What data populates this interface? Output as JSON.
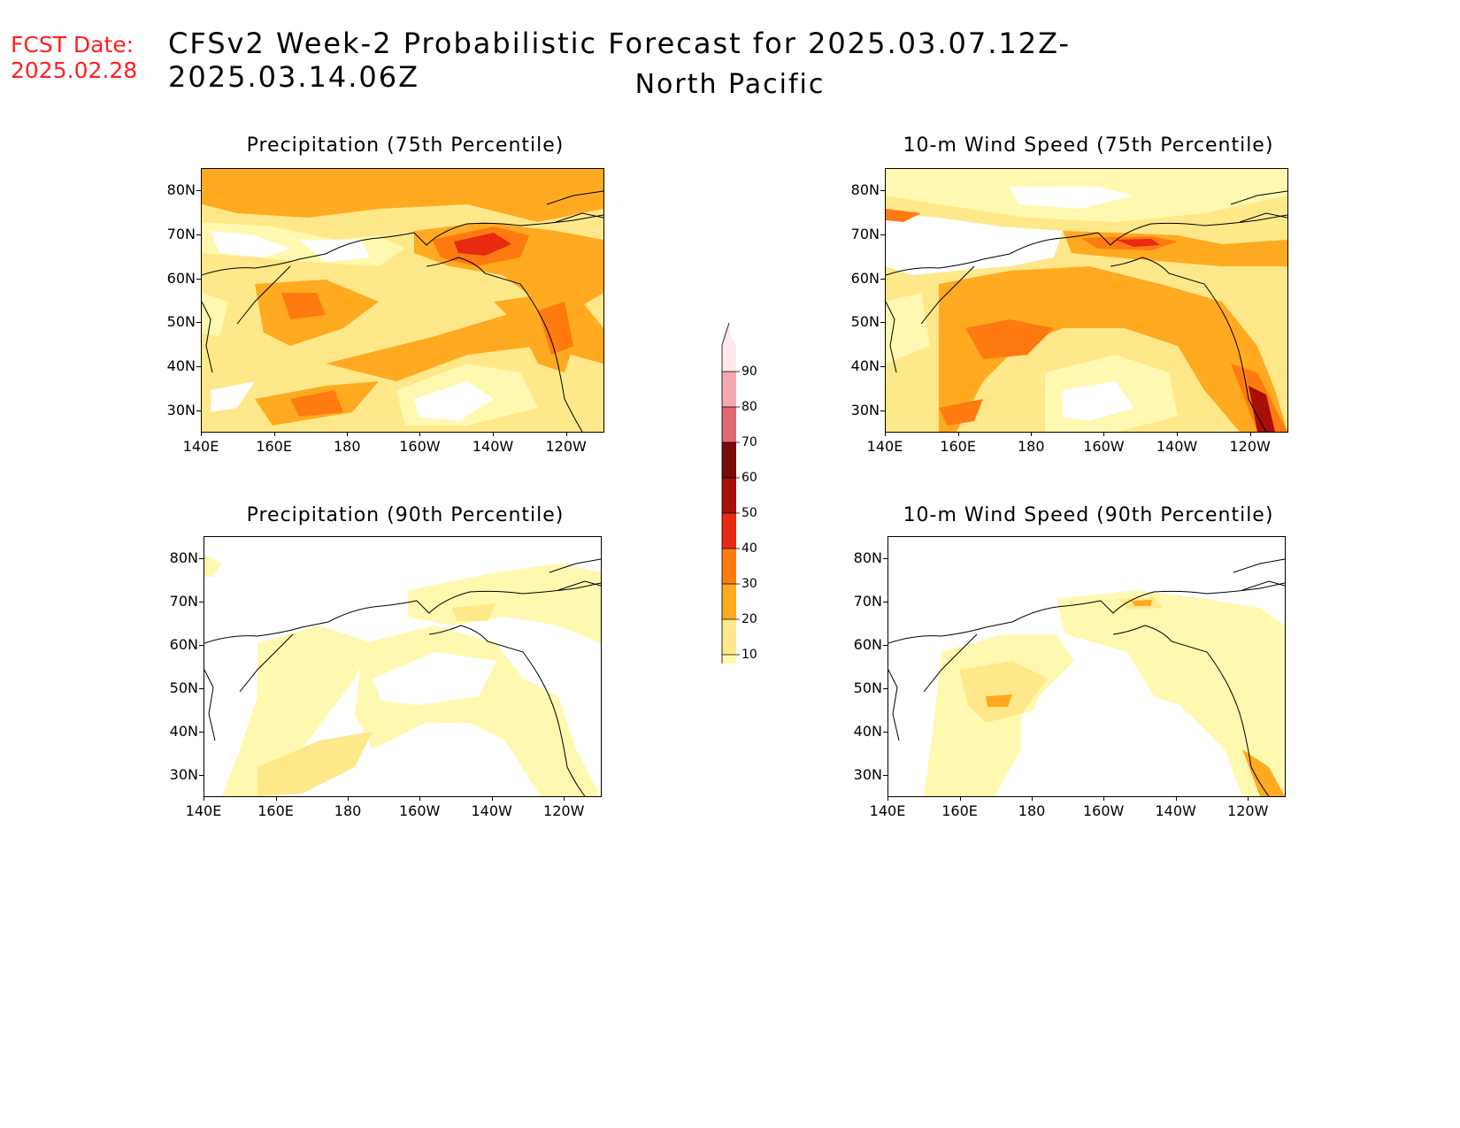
{
  "header": {
    "fcst_label": "FCST Date:",
    "fcst_date": "2025.02.28",
    "title": "CFSv2 Week-2 Probabilistic Forecast for 2025.03.07.12Z-2025.03.14.06Z",
    "region": "North Pacific"
  },
  "panels": [
    {
      "id": "precip75",
      "title": "Precipitation (75th Percentile)"
    },
    {
      "id": "wind75",
      "title": "10-m Wind Speed (75th Percentile)"
    },
    {
      "id": "precip90",
      "title": "Precipitation (90th Percentile)"
    },
    {
      "id": "wind90",
      "title": "10-m Wind Speed (90th Percentile)"
    }
  ],
  "axes": {
    "lat_labels": [
      "80N",
      "70N",
      "60N",
      "50N",
      "40N",
      "30N"
    ],
    "lon_labels": [
      "140E",
      "160E",
      "180",
      "160W",
      "140W",
      "120W"
    ]
  },
  "colorbar": {
    "levels": [
      "10",
      "20",
      "30",
      "40",
      "50",
      "60",
      "70",
      "80",
      "90"
    ],
    "colors": [
      "#fff8b0",
      "#ffe88a",
      "#ffaa20",
      "#ff7a10",
      "#e82a10",
      "#a80f08",
      "#7a0a06",
      "#e06870",
      "#f4a8b0",
      "#fde8ea"
    ]
  }
}
